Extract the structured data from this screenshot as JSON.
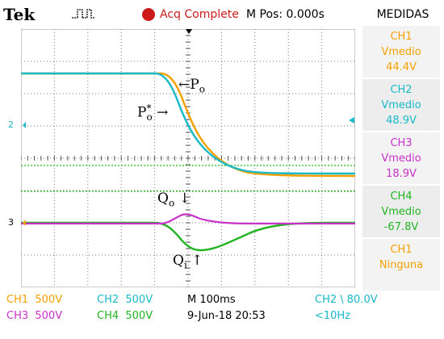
{
  "header": {
    "brand": "Tek",
    "trigger_icon": "pulse-trigger-icon",
    "acq_status": "Acq Complete",
    "mpos": "M Pos: 0.000s",
    "measure_title": "MEDIDAS"
  },
  "measurements": [
    {
      "channel": "CH1",
      "label": "Vmedio",
      "value": "44.4V",
      "color": "#f5a000"
    },
    {
      "channel": "CH2",
      "label": "Vmedio",
      "value": "48.9V",
      "color": "#19b9c8"
    },
    {
      "channel": "CH3",
      "label": "Vmedio",
      "value": "18.9V",
      "color": "#c832c8"
    },
    {
      "channel": "CH4",
      "label": "Vmedio",
      "value": "-67.8V",
      "color": "#21b421"
    },
    {
      "channel": "CH1",
      "label": "Ninguna",
      "value": "",
      "color": "#f5a000"
    }
  ],
  "markers": {
    "ch2_left": "2",
    "ch3_left": "3"
  },
  "annotations": {
    "po": "P",
    "po_sub": "o",
    "po_star": "P",
    "po_star_sub": "o",
    "po_star_sup": "*",
    "qo": "Q",
    "qo_sub": "o",
    "qi": "Q",
    "qi_sub": "i"
  },
  "status_bar": {
    "ch1": "CH1",
    "ch1_scale": "500V",
    "ch2": "CH2",
    "ch2_scale": "500V",
    "ch3": "CH3",
    "ch3_scale": "500V",
    "ch4": "CH4",
    "ch4_scale": "500V",
    "timebase": "M 100ms",
    "date": "9-Jun-18 20:53",
    "trigger": "CH2 \\ 80.0V",
    "freq": "<10Hz"
  },
  "colors": {
    "ch1": "#f5a000",
    "ch2": "#19b9c8",
    "ch3": "#c832c8",
    "ch4": "#21b421",
    "acq": "#cc1a1a"
  }
}
